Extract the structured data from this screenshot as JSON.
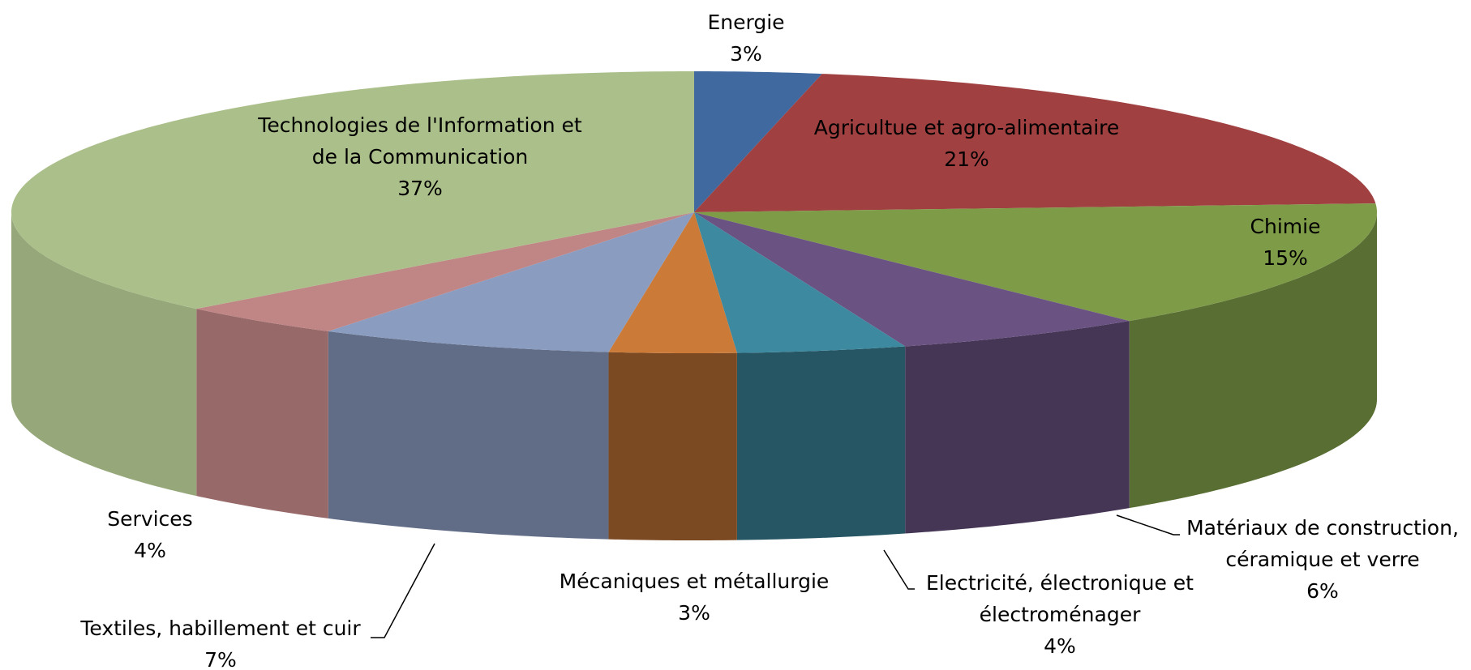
{
  "chart_data": {
    "type": "pie3d",
    "categories": [
      "Energie",
      "Agricultue et agro-alimentaire",
      "Chimie",
      "Matériaux de construction, céramique et verre",
      "Electricité, électronique et électroménager",
      "Mécaniques et métallurgie",
      "Textiles, habillement et cuir",
      "Services",
      "Technologies de l'Information et de la Communication"
    ],
    "values": [
      3,
      21,
      15,
      6,
      4,
      3,
      7,
      4,
      37
    ],
    "value_labels": [
      "3%",
      "21%",
      "15%",
      "6%",
      "4%",
      "3%",
      "7%",
      "4%",
      "37%"
    ],
    "colors": [
      "#4069a0",
      "#a04040",
      "#7e9b48",
      "#6a5283",
      "#3d8aa0",
      "#cc7a38",
      "#8a9cc0",
      "#c08585",
      "#abbf8a"
    ]
  }
}
